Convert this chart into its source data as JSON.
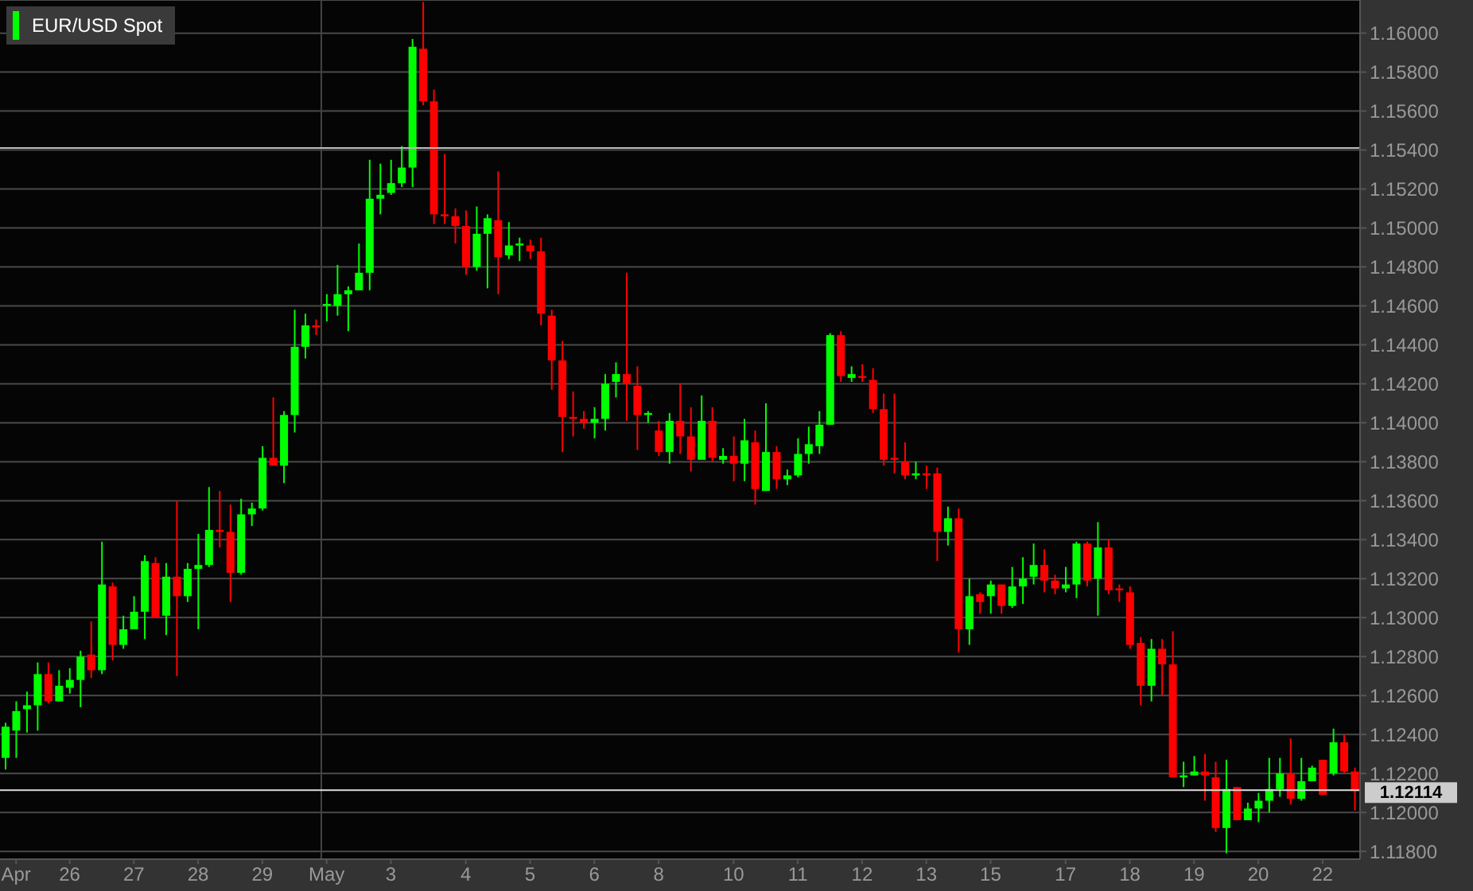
{
  "chart_data": {
    "type": "candlestick",
    "legend": "top left",
    "grid": "y",
    "categories": [
      null,
      "Apr",
      null,
      null,
      null,
      null,
      "26",
      null,
      null,
      null,
      null,
      null,
      "27",
      null,
      null,
      null,
      null,
      null,
      "28",
      null,
      null,
      null,
      null,
      null,
      "29",
      null,
      null,
      null,
      null,
      null,
      "May",
      null,
      null,
      null,
      null,
      null,
      "3",
      null,
      null,
      null,
      null,
      null,
      null,
      "4",
      null,
      null,
      null,
      null,
      null,
      "5",
      null,
      null,
      null,
      null,
      null,
      "6",
      null,
      null,
      null,
      null,
      null,
      "8",
      null,
      null,
      null,
      null,
      null,
      null,
      "10",
      null,
      null,
      null,
      null,
      null,
      "11",
      null,
      null,
      null,
      null,
      null,
      "12",
      null,
      null,
      null,
      null,
      null,
      "13",
      null,
      null,
      null,
      null,
      null,
      "15",
      null,
      null,
      null,
      null,
      null,
      null,
      "17",
      null,
      null,
      null,
      null,
      null,
      "18",
      null,
      null,
      null,
      null,
      null,
      "19",
      null,
      null,
      null,
      null,
      null,
      "20",
      null,
      null,
      null,
      null,
      null,
      "22",
      null,
      null,
      null
    ],
    "ylim": [
      1.1176,
      1.1617
    ],
    "yticks": [
      {
        "value": 1.118,
        "label": "1.11800"
      },
      {
        "value": 1.12,
        "label": "1.12000"
      },
      {
        "value": 1.122,
        "label": "1.12200"
      },
      {
        "value": 1.124,
        "label": "1.12400"
      },
      {
        "value": 1.126,
        "label": "1.12600"
      },
      {
        "value": 1.128,
        "label": "1.12800"
      },
      {
        "value": 1.13,
        "label": "1.13000"
      },
      {
        "value": 1.132,
        "label": "1.13200"
      },
      {
        "value": 1.134,
        "label": "1.13400"
      },
      {
        "value": 1.136,
        "label": "1.13600"
      },
      {
        "value": 1.138,
        "label": "1.13800"
      },
      {
        "value": 1.14,
        "label": "1.14000"
      },
      {
        "value": 1.142,
        "label": "1.14200"
      },
      {
        "value": 1.144,
        "label": "1.14400"
      },
      {
        "value": 1.146,
        "label": "1.14600"
      },
      {
        "value": 1.148,
        "label": "1.14800"
      },
      {
        "value": 1.15,
        "label": "1.15000"
      },
      {
        "value": 1.152,
        "label": "1.15200"
      },
      {
        "value": 1.154,
        "label": "1.15400"
      },
      {
        "value": 1.156,
        "label": "1.15600"
      },
      {
        "value": 1.158,
        "label": "1.15800"
      },
      {
        "value": 1.16,
        "label": "1.16000"
      }
    ],
    "ref_lines": [
      {
        "axis": "x",
        "value": "May",
        "color": "#444444"
      },
      {
        "axis": "y",
        "value": 1.1541,
        "color": "#bbbbbb"
      },
      {
        "axis": "y",
        "value": 1.12114,
        "label": "1.12114",
        "color": "#dddddd"
      }
    ],
    "series": [
      {
        "name": "EUR/USD Spot",
        "colors": [
          "#00ff00",
          "#00ff00",
          "#00ff00",
          "#00ff00",
          "#ff0000",
          "#00ff00",
          "#00ff00",
          "#00ff00",
          "#ff0000",
          "#00ff00",
          "#ff0000",
          "#00ff00",
          "#00ff00",
          "#00ff00",
          "#ff0000",
          "#00ff00",
          "#ff0000",
          "#00ff00",
          "#00ff00",
          "#00ff00",
          "#ff0000",
          "#ff0000",
          "#00ff00",
          "#00ff00",
          "#00ff00",
          "#ff0000",
          "#00ff00",
          "#00ff00",
          "#00ff00",
          "#ff0000",
          "#00ff00",
          "#00ff00",
          "#00ff00",
          "#00ff00",
          "#00ff00",
          "#00ff00",
          "#00ff00",
          "#00ff00",
          "#00ff00",
          "#ff0000",
          "#ff0000",
          "#ff0000",
          "#ff0000",
          "#ff0000",
          "#00ff00",
          "#00ff00",
          "#ff0000",
          "#00ff00",
          "#00ff00",
          "#ff0000",
          "#ff0000",
          "#ff0000",
          "#ff0000",
          "#ff0000",
          "#ff0000",
          "#00ff00",
          "#00ff00",
          "#00ff00",
          "#ff0000",
          "#ff0000",
          "#00ff00",
          "#ff0000",
          "#00ff00",
          "#ff0000",
          "#ff0000",
          "#00ff00",
          "#ff0000",
          "#00ff00",
          "#ff0000",
          "#00ff00",
          "#ff0000",
          "#00ff00",
          "#ff0000",
          "#00ff00",
          "#00ff00",
          "#00ff00",
          "#00ff00",
          "#00ff00",
          "#ff0000",
          "#00ff00",
          "#ff0000",
          "#ff0000",
          "#ff0000",
          "#ff0000",
          "#ff0000",
          "#00ff00",
          "#ff0000",
          "#ff0000",
          "#00ff00",
          "#ff0000",
          "#00ff00",
          "#ff0000",
          "#00ff00",
          "#ff0000",
          "#00ff00",
          "#00ff00",
          "#00ff00",
          "#ff0000",
          "#ff0000",
          "#00ff00",
          "#00ff00",
          "#ff0000",
          "#00ff00",
          "#ff0000",
          "#ff0000",
          "#ff0000",
          "#ff0000",
          "#00ff00",
          "#ff0000",
          "#ff0000",
          "#00ff00",
          "#00ff00",
          "#ff0000",
          "#ff0000",
          "#00ff00",
          "#ff0000",
          "#00ff00",
          "#00ff00",
          "#00ff00",
          "#00ff00",
          "#ff0000",
          "#00ff00",
          "#00ff00",
          "#ff0000",
          "#00ff00",
          "#ff0000",
          "#ff0000"
        ],
        "ohlc": [
          [
            1.1228,
            1.1246,
            1.1222,
            1.1244
          ],
          [
            1.1242,
            1.1257,
            1.1228,
            1.1252
          ],
          [
            1.1253,
            1.1262,
            1.1241,
            1.1255
          ],
          [
            1.1255,
            1.1277,
            1.1242,
            1.1271
          ],
          [
            1.1271,
            1.1277,
            1.1256,
            1.1257
          ],
          [
            1.1257,
            1.1273,
            1.1257,
            1.1265
          ],
          [
            1.1264,
            1.1274,
            1.1261,
            1.1268
          ],
          [
            1.1268,
            1.1283,
            1.1254,
            1.128
          ],
          [
            1.1281,
            1.1298,
            1.1269,
            1.1273
          ],
          [
            1.1273,
            1.1339,
            1.1271,
            1.1317
          ],
          [
            1.1316,
            1.1318,
            1.1278,
            1.1286
          ],
          [
            1.1286,
            1.1301,
            1.1284,
            1.1294
          ],
          [
            1.1294,
            1.1311,
            1.1294,
            1.1303
          ],
          [
            1.1303,
            1.1332,
            1.1289,
            1.1329
          ],
          [
            1.1328,
            1.1331,
            1.13,
            1.13
          ],
          [
            1.1301,
            1.1328,
            1.1291,
            1.1321
          ],
          [
            1.1321,
            1.136,
            1.127,
            1.1311
          ],
          [
            1.1311,
            1.1328,
            1.1308,
            1.1325
          ],
          [
            1.1325,
            1.1343,
            1.1294,
            1.1327
          ],
          [
            1.1327,
            1.1367,
            1.1326,
            1.1345
          ],
          [
            1.1345,
            1.1365,
            1.1336,
            1.1344
          ],
          [
            1.1344,
            1.1358,
            1.1308,
            1.1323
          ],
          [
            1.1323,
            1.1361,
            1.1322,
            1.1353
          ],
          [
            1.1353,
            1.1359,
            1.1347,
            1.1356
          ],
          [
            1.1356,
            1.1388,
            1.1355,
            1.1382
          ],
          [
            1.1382,
            1.1413,
            1.1378,
            1.1378
          ],
          [
            1.1378,
            1.1406,
            1.1369,
            1.1404
          ],
          [
            1.1404,
            1.1458,
            1.1395,
            1.1439
          ],
          [
            1.1439,
            1.1456,
            1.1433,
            1.145
          ],
          [
            1.145,
            1.1453,
            1.1445,
            1.1449
          ],
          [
            1.146,
            1.1466,
            1.1452,
            1.1461
          ],
          [
            1.146,
            1.1481,
            1.1455,
            1.1466
          ],
          [
            1.1466,
            1.147,
            1.1447,
            1.1468
          ],
          [
            1.1468,
            1.1492,
            1.1468,
            1.1477
          ],
          [
            1.1477,
            1.1535,
            1.1468,
            1.1515
          ],
          [
            1.1515,
            1.1533,
            1.1507,
            1.1517
          ],
          [
            1.1518,
            1.1535,
            1.1517,
            1.1523
          ],
          [
            1.1523,
            1.1542,
            1.1521,
            1.1531
          ],
          [
            1.1531,
            1.1597,
            1.1521,
            1.1593
          ],
          [
            1.1592,
            1.1616,
            1.1563,
            1.1565
          ],
          [
            1.1565,
            1.1571,
            1.1502,
            1.1507
          ],
          [
            1.1507,
            1.1538,
            1.1502,
            1.1506
          ],
          [
            1.1506,
            1.151,
            1.1492,
            1.1501
          ],
          [
            1.1501,
            1.1509,
            1.1476,
            1.148
          ],
          [
            1.148,
            1.1511,
            1.1478,
            1.1497
          ],
          [
            1.1497,
            1.1507,
            1.1469,
            1.1505
          ],
          [
            1.1504,
            1.1529,
            1.1466,
            1.1485
          ],
          [
            1.1486,
            1.1503,
            1.1484,
            1.1491
          ],
          [
            1.1491,
            1.1495,
            1.1483,
            1.1492
          ],
          [
            1.1491,
            1.1494,
            1.1484,
            1.1488
          ],
          [
            1.1488,
            1.1495,
            1.145,
            1.1456
          ],
          [
            1.1455,
            1.1458,
            1.1417,
            1.1432
          ],
          [
            1.1432,
            1.1442,
            1.1385,
            1.1403
          ],
          [
            1.1403,
            1.1416,
            1.1393,
            1.1402
          ],
          [
            1.1402,
            1.1406,
            1.1397,
            1.14
          ],
          [
            1.14,
            1.1408,
            1.1392,
            1.1402
          ],
          [
            1.1402,
            1.1425,
            1.1396,
            1.142
          ],
          [
            1.1421,
            1.1431,
            1.1413,
            1.1425
          ],
          [
            1.1425,
            1.1477,
            1.1401,
            1.142
          ],
          [
            1.1419,
            1.1429,
            1.1386,
            1.1404
          ],
          [
            1.1404,
            1.1406,
            1.14,
            1.1405
          ],
          [
            1.1396,
            1.1401,
            1.1383,
            1.1385
          ],
          [
            1.1385,
            1.1405,
            1.1379,
            1.1401
          ],
          [
            1.1401,
            1.142,
            1.1384,
            1.1393
          ],
          [
            1.1393,
            1.1408,
            1.1375,
            1.1381
          ],
          [
            1.1381,
            1.1414,
            1.1381,
            1.1401
          ],
          [
            1.1401,
            1.1408,
            1.138,
            1.1382
          ],
          [
            1.1381,
            1.1387,
            1.1379,
            1.1383
          ],
          [
            1.1383,
            1.1393,
            1.137,
            1.1379
          ],
          [
            1.1379,
            1.1402,
            1.137,
            1.1391
          ],
          [
            1.139,
            1.1396,
            1.1358,
            1.1366
          ],
          [
            1.1365,
            1.141,
            1.1365,
            1.1385
          ],
          [
            1.1385,
            1.1388,
            1.1366,
            1.1371
          ],
          [
            1.1371,
            1.1376,
            1.1368,
            1.1373
          ],
          [
            1.1373,
            1.1392,
            1.1372,
            1.1384
          ],
          [
            1.1384,
            1.1398,
            1.1379,
            1.1389
          ],
          [
            1.1388,
            1.1406,
            1.1384,
            1.1399
          ],
          [
            1.1399,
            1.1446,
            1.1399,
            1.1445
          ],
          [
            1.1445,
            1.1447,
            1.1421,
            1.1424
          ],
          [
            1.1423,
            1.1429,
            1.1421,
            1.1425
          ],
          [
            1.1424,
            1.143,
            1.1421,
            1.1423
          ],
          [
            1.1422,
            1.1428,
            1.1405,
            1.1407
          ],
          [
            1.1407,
            1.1415,
            1.1378,
            1.1381
          ],
          [
            1.1382,
            1.1415,
            1.1374,
            1.1381
          ],
          [
            1.138,
            1.139,
            1.1371,
            1.1373
          ],
          [
            1.1373,
            1.138,
            1.1371,
            1.1374
          ],
          [
            1.1374,
            1.1378,
            1.1366,
            1.1373
          ],
          [
            1.1374,
            1.1377,
            1.1329,
            1.1344
          ],
          [
            1.1344,
            1.1357,
            1.1337,
            1.1351
          ],
          [
            1.1351,
            1.1356,
            1.1282,
            1.1294
          ],
          [
            1.1294,
            1.132,
            1.1286,
            1.1311
          ],
          [
            1.1312,
            1.1313,
            1.1302,
            1.1308
          ],
          [
            1.1311,
            1.1319,
            1.1302,
            1.1317
          ],
          [
            1.1317,
            1.1317,
            1.1302,
            1.1306
          ],
          [
            1.1306,
            1.1326,
            1.1305,
            1.1316
          ],
          [
            1.1316,
            1.1331,
            1.1307,
            1.132
          ],
          [
            1.1321,
            1.1338,
            1.1317,
            1.1327
          ],
          [
            1.1327,
            1.1335,
            1.1313,
            1.1319
          ],
          [
            1.1319,
            1.1322,
            1.1312,
            1.1315
          ],
          [
            1.1315,
            1.1326,
            1.1313,
            1.1317
          ],
          [
            1.1317,
            1.1339,
            1.131,
            1.1338
          ],
          [
            1.1338,
            1.1339,
            1.1316,
            1.1319
          ],
          [
            1.132,
            1.1349,
            1.1301,
            1.1336
          ],
          [
            1.1336,
            1.134,
            1.1312,
            1.1314
          ],
          [
            1.1315,
            1.1317,
            1.1308,
            1.1314
          ],
          [
            1.1313,
            1.1316,
            1.1284,
            1.1286
          ],
          [
            1.1287,
            1.129,
            1.1255,
            1.1265
          ],
          [
            1.1265,
            1.1289,
            1.1257,
            1.1284
          ],
          [
            1.1284,
            1.1289,
            1.126,
            1.1276
          ],
          [
            1.1276,
            1.1293,
            1.1218,
            1.1218
          ],
          [
            1.1218,
            1.1226,
            1.1213,
            1.1219
          ],
          [
            1.1219,
            1.1229,
            1.1219,
            1.1221
          ],
          [
            1.1221,
            1.123,
            1.1206,
            1.1219
          ],
          [
            1.1218,
            1.1226,
            1.119,
            1.1192
          ],
          [
            1.1192,
            1.1227,
            1.1179,
            1.1212
          ],
          [
            1.1213,
            1.1213,
            1.1196,
            1.1196
          ],
          [
            1.1196,
            1.1205,
            1.1196,
            1.1202
          ],
          [
            1.1202,
            1.121,
            1.1195,
            1.1206
          ],
          [
            1.1206,
            1.1228,
            1.12,
            1.1212
          ],
          [
            1.1212,
            1.1228,
            1.1208,
            1.122
          ],
          [
            1.122,
            1.1238,
            1.1204,
            1.1207
          ],
          [
            1.1207,
            1.1228,
            1.1206,
            1.1216
          ],
          [
            1.1216,
            1.1224,
            1.1216,
            1.1223
          ],
          [
            1.1227,
            1.1227,
            1.1209,
            1.1209
          ],
          [
            1.122,
            1.1243,
            1.1219,
            1.1236
          ],
          [
            1.1236,
            1.124,
            1.122,
            1.1221
          ],
          [
            1.1221,
            1.1223,
            1.1201,
            1.1211
          ]
        ]
      }
    ]
  }
}
